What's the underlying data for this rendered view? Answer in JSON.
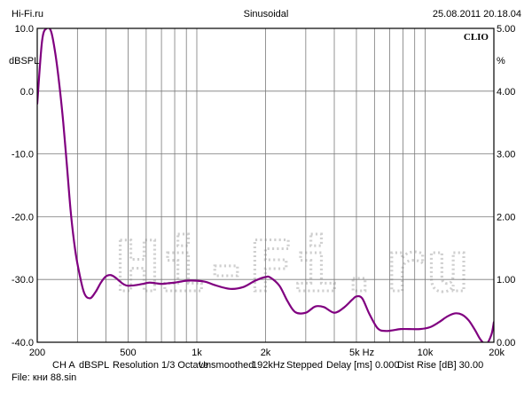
{
  "header": {
    "site": "Hi-Fi.ru",
    "mode": "Sinusoidal",
    "datetime": "25.08.2011 20.18.04",
    "logo": "CLIO"
  },
  "footer": {
    "settings": [
      "CH A",
      "dBSPL",
      "Resolution 1/3 Octave",
      "Unsmoothed",
      "192kHz",
      "Stepped",
      "Delay [ms] 0.000",
      "Dist Rise [dB] 30.00"
    ],
    "file": "File: кни 88.sin"
  },
  "watermark": "Hi-Fi.ru",
  "colors": {
    "curve": "#800080",
    "grid": "#7a7a7a",
    "watermark": "#cfcfcf"
  },
  "chart_data": {
    "type": "line",
    "title": "",
    "xlabel": "",
    "ylabel": "dBSPL",
    "y2label": "%",
    "xscale": "log",
    "xlim": [
      200,
      20000
    ],
    "ylim": [
      -40,
      10
    ],
    "y2lim": [
      0,
      5
    ],
    "grid": true,
    "x_tick_labels": [
      {
        "value": 200,
        "label": "200"
      },
      {
        "value": 500,
        "label": "500"
      },
      {
        "value": 1000,
        "label": "1k"
      },
      {
        "value": 2000,
        "label": "2k"
      },
      {
        "value": 5000,
        "label": "5k Hz"
      },
      {
        "value": 10000,
        "label": "10k"
      },
      {
        "value": 20000,
        "label": "20k"
      }
    ],
    "x_gridlines": [
      300,
      400,
      500,
      600,
      700,
      800,
      900,
      1000,
      2000,
      3000,
      4000,
      5000,
      6000,
      7000,
      8000,
      9000,
      10000
    ],
    "y_ticks": [
      {
        "value": 10,
        "label": "10.0"
      },
      {
        "value": 0,
        "label": "0.0"
      },
      {
        "value": -10,
        "label": "-10.0"
      },
      {
        "value": -20,
        "label": "-20.0"
      },
      {
        "value": -30,
        "label": "-30.0"
      },
      {
        "value": -40,
        "label": "-40.0"
      }
    ],
    "y2_ticks": [
      {
        "value": 5,
        "label": "5.00"
      },
      {
        "value": 4,
        "label": "4.00"
      },
      {
        "value": 3,
        "label": "3.00"
      },
      {
        "value": 2,
        "label": "2.00"
      },
      {
        "value": 1,
        "label": "1.00"
      },
      {
        "value": 0,
        "label": "0.00"
      }
    ],
    "series": [
      {
        "x": [
          200,
          210,
          220,
          230,
          240,
          250,
          260,
          270,
          280,
          290,
          300,
          320,
          340,
          360,
          380,
          400,
          420,
          440,
          460,
          480,
          500,
          540,
          580,
          620,
          660,
          700,
          750,
          800,
          900,
          1000,
          1100,
          1200,
          1400,
          1600,
          1800,
          2000,
          2100,
          2300,
          2500,
          2700,
          3000,
          3300,
          3600,
          4000,
          4400,
          4800,
          5000,
          5300,
          5700,
          6200,
          6700,
          7200,
          7800,
          8500,
          9500,
          10500,
          11500,
          12500,
          13500,
          14500,
          15500,
          16500,
          17500,
          18500,
          19500,
          20000
        ],
        "y": [
          -2,
          8,
          10,
          9.5,
          6,
          1,
          -5,
          -12,
          -19,
          -24,
          -27.5,
          -32,
          -33,
          -32,
          -30.5,
          -29.5,
          -29.3,
          -29.7,
          -30.3,
          -30.8,
          -31,
          -30.9,
          -30.7,
          -30.5,
          -30.6,
          -30.7,
          -30.6,
          -30.5,
          -30.2,
          -30.2,
          -30.4,
          -30.9,
          -31.5,
          -31.2,
          -30.2,
          -29.6,
          -29.7,
          -31,
          -33.5,
          -35.2,
          -35.3,
          -34.3,
          -34.4,
          -35.3,
          -34.5,
          -33.2,
          -32.7,
          -33,
          -35.5,
          -37.8,
          -38.2,
          -38.1,
          -37.9,
          -37.9,
          -37.9,
          -37.6,
          -36.8,
          -35.9,
          -35.4,
          -35.6,
          -36.5,
          -38,
          -39.6,
          -40.3,
          -38.8,
          -36.8
        ]
      }
    ]
  }
}
